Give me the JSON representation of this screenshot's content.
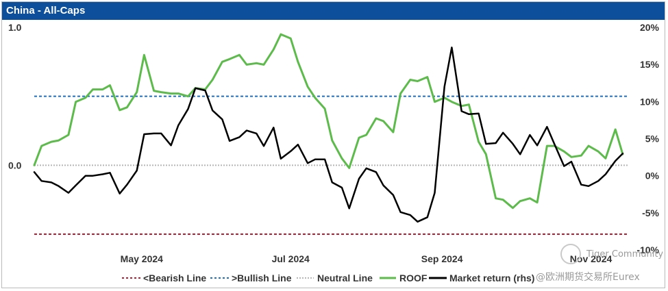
{
  "header": {
    "title": "China - All-Caps"
  },
  "watermark": {
    "community": "Tiger Community",
    "source": "@欧洲期货交易所Eurex"
  },
  "colors": {
    "title_bg": "#0d4f9a",
    "roof": "#5cbb4a",
    "market": "#000000",
    "bearish": "#c0182f",
    "bullish": "#1f6fc1",
    "neutral": "#b5b5b5"
  },
  "chart_data": {
    "type": "line",
    "title": "China - All-Caps",
    "x_range": [
      "2024-04-01",
      "2024-11-30"
    ],
    "x_ticks": [
      {
        "label": "May 2024",
        "date": "2024-05-15"
      },
      {
        "label": "Jul 2024",
        "date": "2024-07-15"
      },
      {
        "label": "Sep 2024",
        "date": "2024-09-15"
      },
      {
        "label": "Nov 2024",
        "date": "2024-11-15"
      }
    ],
    "y_left": {
      "range": [
        -0.5,
        1.0
      ],
      "ticks": [
        {
          "label": "1.0",
          "value": 1.0
        },
        {
          "label": "0.0",
          "value": 0.0
        }
      ]
    },
    "y_right": {
      "range": [
        -10,
        20
      ],
      "ticks": [
        {
          "label": "20%",
          "value": 20
        },
        {
          "label": "15%",
          "value": 15
        },
        {
          "label": "10%",
          "value": 10
        },
        {
          "label": "5%",
          "value": 5
        },
        {
          "label": "0%",
          "value": 0
        },
        {
          "label": "-5%",
          "value": -5
        },
        {
          "label": "-10%",
          "value": -10
        }
      ]
    },
    "reference_lines": [
      {
        "name": "<Bearish Line",
        "value": -0.5,
        "axis": "left"
      },
      {
        "name": ">Bullish Line",
        "value": 0.5,
        "axis": "left"
      },
      {
        "name": "Neutral Line",
        "value": 0.0,
        "axis": "left"
      }
    ],
    "legend": [
      "<Bearish Line",
      ">Bullish Line",
      "Neutral Line",
      "ROOF",
      "Market return (rhs)"
    ],
    "series": [
      {
        "name": "ROOF",
        "axis": "left",
        "x": [
          "2024-04-01",
          "2024-04-04",
          "2024-04-08",
          "2024-04-11",
          "2024-04-15",
          "2024-04-18",
          "2024-04-22",
          "2024-04-25",
          "2024-04-29",
          "2024-05-02",
          "2024-05-06",
          "2024-05-09",
          "2024-05-13",
          "2024-05-16",
          "2024-05-20",
          "2024-05-23",
          "2024-05-27",
          "2024-05-30",
          "2024-06-03",
          "2024-06-06",
          "2024-06-10",
          "2024-06-13",
          "2024-06-17",
          "2024-06-20",
          "2024-06-24",
          "2024-06-27",
          "2024-07-01",
          "2024-07-04",
          "2024-07-08",
          "2024-07-11",
          "2024-07-15",
          "2024-07-18",
          "2024-07-22",
          "2024-07-25",
          "2024-07-29",
          "2024-08-01",
          "2024-08-05",
          "2024-08-08",
          "2024-08-12",
          "2024-08-15",
          "2024-08-19",
          "2024-08-22",
          "2024-08-26",
          "2024-08-29",
          "2024-09-02",
          "2024-09-05",
          "2024-09-09",
          "2024-09-12",
          "2024-09-16",
          "2024-09-19",
          "2024-09-23",
          "2024-09-26",
          "2024-09-30",
          "2024-10-03",
          "2024-10-07",
          "2024-10-10",
          "2024-10-14",
          "2024-10-17",
          "2024-10-21",
          "2024-10-24",
          "2024-10-28",
          "2024-10-31",
          "2024-11-04",
          "2024-11-07",
          "2024-11-11",
          "2024-11-14",
          "2024-11-18",
          "2024-11-21",
          "2024-11-25",
          "2024-11-28"
        ],
        "values": [
          0.0,
          0.14,
          0.17,
          0.18,
          0.22,
          0.46,
          0.49,
          0.55,
          0.55,
          0.58,
          0.4,
          0.42,
          0.53,
          0.8,
          0.54,
          0.53,
          0.52,
          0.52,
          0.5,
          0.56,
          0.55,
          0.62,
          0.75,
          0.77,
          0.8,
          0.73,
          0.74,
          0.73,
          0.84,
          0.95,
          0.92,
          0.75,
          0.57,
          0.49,
          0.41,
          0.18,
          0.05,
          -0.02,
          0.2,
          0.22,
          0.34,
          0.32,
          0.24,
          0.52,
          0.62,
          0.61,
          0.64,
          0.46,
          0.49,
          0.46,
          0.43,
          0.44,
          0.17,
          0.08,
          -0.24,
          -0.25,
          -0.31,
          -0.26,
          -0.24,
          -0.27,
          0.14,
          0.14,
          0.1,
          0.06,
          0.07,
          0.14,
          0.1,
          0.05,
          0.26,
          0.08
        ]
      },
      {
        "name": "Market return (rhs)",
        "axis": "right",
        "x": [
          "2024-04-01",
          "2024-04-04",
          "2024-04-08",
          "2024-04-11",
          "2024-04-15",
          "2024-04-18",
          "2024-04-22",
          "2024-04-25",
          "2024-04-29",
          "2024-05-02",
          "2024-05-06",
          "2024-05-09",
          "2024-05-13",
          "2024-05-16",
          "2024-05-20",
          "2024-05-23",
          "2024-05-27",
          "2024-05-30",
          "2024-06-03",
          "2024-06-06",
          "2024-06-10",
          "2024-06-13",
          "2024-06-17",
          "2024-06-20",
          "2024-06-24",
          "2024-06-27",
          "2024-07-01",
          "2024-07-04",
          "2024-07-08",
          "2024-07-11",
          "2024-07-15",
          "2024-07-18",
          "2024-07-22",
          "2024-07-25",
          "2024-07-29",
          "2024-08-01",
          "2024-08-05",
          "2024-08-08",
          "2024-08-12",
          "2024-08-15",
          "2024-08-19",
          "2024-08-22",
          "2024-08-26",
          "2024-08-29",
          "2024-09-02",
          "2024-09-05",
          "2024-09-09",
          "2024-09-12",
          "2024-09-16",
          "2024-09-19",
          "2024-09-23",
          "2024-09-26",
          "2024-09-30",
          "2024-10-03",
          "2024-10-07",
          "2024-10-10",
          "2024-10-14",
          "2024-10-17",
          "2024-10-21",
          "2024-10-24",
          "2024-10-28",
          "2024-10-31",
          "2024-11-04",
          "2024-11-07",
          "2024-11-11",
          "2024-11-14",
          "2024-11-18",
          "2024-11-21",
          "2024-11-25",
          "2024-11-28"
        ],
        "values": [
          0.5,
          -0.7,
          -0.9,
          -1.4,
          -2.3,
          -1.3,
          0.0,
          0.0,
          0.2,
          0.4,
          -2.4,
          -1.2,
          0.7,
          5.6,
          5.7,
          5.7,
          4.1,
          6.8,
          9.0,
          11.8,
          11.5,
          8.8,
          7.6,
          4.7,
          5.2,
          6.1,
          5.7,
          4.0,
          6.5,
          2.3,
          3.3,
          4.2,
          1.7,
          2.2,
          2.2,
          -0.9,
          -1.6,
          -4.4,
          -0.4,
          1.0,
          0.5,
          -1.3,
          -2.6,
          -4.9,
          -5.3,
          -6.2,
          -5.6,
          -2.3,
          12.0,
          17.3,
          8.7,
          8.3,
          8.4,
          4.3,
          4.4,
          5.8,
          4.3,
          2.9,
          5.5,
          4.1,
          6.6,
          4.3,
          1.3,
          1.9,
          -1.2,
          -1.4,
          -0.7,
          0.2,
          2.0,
          3.0
        ]
      }
    ]
  }
}
